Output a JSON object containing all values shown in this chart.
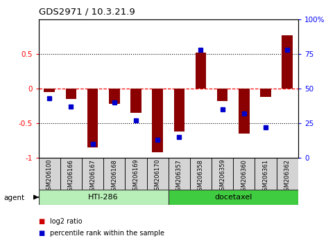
{
  "title": "GDS2971 / 10.3.21.9",
  "samples": [
    "GSM206100",
    "GSM206166",
    "GSM206167",
    "GSM206168",
    "GSM206169",
    "GSM206170",
    "GSM206357",
    "GSM206358",
    "GSM206359",
    "GSM206360",
    "GSM206361",
    "GSM206362"
  ],
  "log2_ratio": [
    -0.05,
    -0.15,
    -0.85,
    -0.22,
    -0.35,
    -0.92,
    -0.62,
    0.52,
    -0.18,
    -0.65,
    -0.12,
    0.77
  ],
  "percentile_rank": [
    43,
    37,
    10,
    40,
    27,
    13,
    15,
    78,
    35,
    32,
    22,
    78
  ],
  "groups": [
    {
      "label": "HTI-286",
      "start": 0,
      "end": 5,
      "color_light": "#c8f0c8",
      "color_dark": "#50c850"
    },
    {
      "label": "docetaxel",
      "start": 6,
      "end": 11,
      "color_light": "#50c850",
      "color_dark": "#50c850"
    }
  ],
  "bar_color": "#8b0000",
  "dot_color": "#0000cc",
  "ylim": [
    -1.0,
    1.0
  ],
  "background_color": "#ffffff",
  "plot_bg_color": "#ffffff",
  "bar_width": 0.5,
  "legend_items": [
    {
      "label": "log2 ratio",
      "color": "#cc0000"
    },
    {
      "label": "percentile rank within the sample",
      "color": "#0000cc"
    }
  ],
  "group_colors": [
    "#b8efb8",
    "#40cc40"
  ]
}
